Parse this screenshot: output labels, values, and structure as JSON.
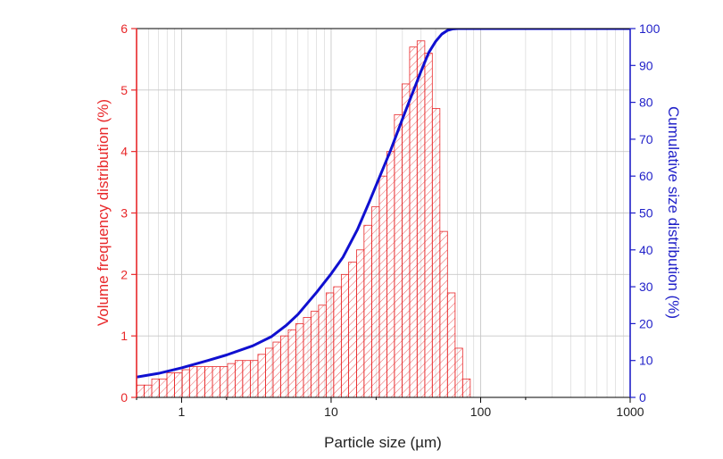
{
  "chart_data": {
    "type": "bar",
    "xlabel": "Particle size (µm)",
    "ylabel_left": "Volume frequency distribution (%)",
    "ylabel_right": "Cumulative size distribution (%)",
    "x_scale": "log",
    "xlim": [
      0.5,
      1000
    ],
    "ylim_left": [
      0,
      6
    ],
    "ylim_right": [
      0,
      100
    ],
    "x_ticks": [
      "1",
      "10",
      "100",
      "1000"
    ],
    "y_left_ticks": [
      "0",
      "1",
      "2",
      "3",
      "4",
      "5",
      "6"
    ],
    "y_right_ticks": [
      "0",
      "10",
      "20",
      "30",
      "40",
      "50",
      "60",
      "70",
      "80",
      "90",
      "100"
    ],
    "grid": true,
    "colors": {
      "left_axis": "#e8282a",
      "right_axis": "#1f1fc8",
      "bars_stroke": "#e8282a",
      "cumulative_line": "#1010d0",
      "grid": "#c8c8c8"
    },
    "series": [
      {
        "kind": "histogram",
        "axis": "left",
        "bin_edges": [
          0.5,
          0.562,
          0.632,
          0.71,
          0.798,
          0.897,
          1.01,
          1.13,
          1.27,
          1.43,
          1.61,
          1.81,
          2.03,
          2.28,
          2.56,
          2.88,
          3.24,
          3.64,
          4.09,
          4.6,
          5.17,
          5.81,
          6.53,
          7.33,
          8.24,
          9.26,
          10.4,
          11.7,
          13.1,
          14.8,
          16.6,
          18.7,
          21.0,
          23.6,
          26.5,
          29.8,
          33.5,
          37.6,
          42.3,
          47.5,
          53.4,
          60.0,
          67.5,
          75.8,
          85.2
        ],
        "values": [
          0.2,
          0.2,
          0.3,
          0.3,
          0.4,
          0.4,
          0.45,
          0.5,
          0.5,
          0.5,
          0.5,
          0.5,
          0.55,
          0.6,
          0.6,
          0.6,
          0.7,
          0.8,
          0.9,
          1.0,
          1.1,
          1.2,
          1.3,
          1.4,
          1.5,
          1.7,
          1.8,
          2.0,
          2.2,
          2.4,
          2.8,
          3.1,
          3.6,
          4.0,
          4.6,
          5.1,
          5.7,
          5.8,
          5.6,
          4.7,
          2.7,
          1.7,
          0.8,
          0.3
        ]
      },
      {
        "kind": "line",
        "axis": "right",
        "x": [
          0.5,
          0.7,
          1.0,
          1.5,
          2.0,
          3.0,
          4.0,
          5.0,
          6.0,
          8.0,
          10,
          12,
          15,
          18,
          20,
          25,
          30,
          35,
          40,
          45,
          50,
          55,
          60,
          65,
          70,
          80,
          100,
          1000
        ],
        "y": [
          5.5,
          6.5,
          8.0,
          10.0,
          11.5,
          14.0,
          16.5,
          19.5,
          22.5,
          28.5,
          33.5,
          38.0,
          45.5,
          53.0,
          57.5,
          67.0,
          75.5,
          82.5,
          88.5,
          93.5,
          96.5,
          98.5,
          99.5,
          99.9,
          100,
          100,
          100,
          100
        ]
      }
    ]
  }
}
